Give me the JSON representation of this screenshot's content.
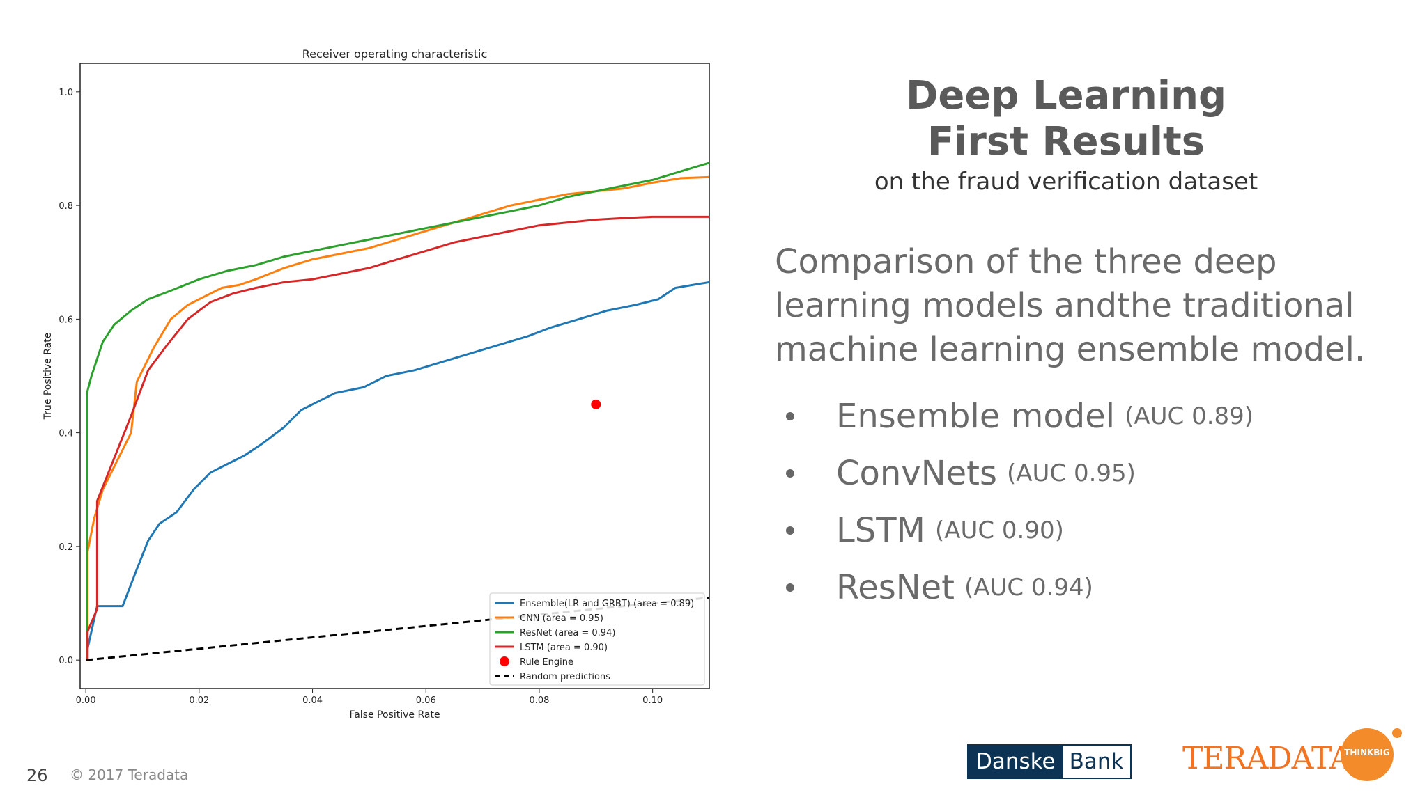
{
  "slide": {
    "title_line1": "Deep Learning",
    "title_line2": "First Results",
    "subtitle": "on the fraud verification dataset",
    "intro": "Comparison of the three deep learning models andthe traditional machine learning ensemble model.",
    "bullets": [
      {
        "model": "Ensemble model",
        "auc": "(AUC 0.89)"
      },
      {
        "model": "ConvNets",
        "auc": "(AUC 0.95)"
      },
      {
        "model": "LSTM",
        "auc": "(AUC 0.90)"
      },
      {
        "model": "ResNet",
        "auc": "(AUC 0.94)"
      }
    ],
    "page_number": "26",
    "copyright": "© 2017 Teradata",
    "logos": {
      "danske_1": "Danske",
      "danske_2": "Bank",
      "teradata": "TERADATA",
      "thinkbig": "THINKBIG"
    }
  },
  "chart_data": {
    "type": "line",
    "title": "Receiver operating characteristic",
    "xlabel": "False Positive Rate",
    "ylabel": "True Positive Rate",
    "xlim": [
      -0.001,
      0.11
    ],
    "ylim": [
      -0.05,
      1.05
    ],
    "xticks": [
      "0.00",
      "0.02",
      "0.04",
      "0.06",
      "0.08",
      "0.10"
    ],
    "yticks": [
      "0.0",
      "0.2",
      "0.4",
      "0.6",
      "0.8",
      "1.0"
    ],
    "legend_position": "lower-right",
    "series": [
      {
        "name": "Ensemble(LR and GRBT) (area = 0.89)",
        "color": "#1f77b4",
        "x": [
          0,
          0.0003,
          0.0003,
          0.002,
          0.0065,
          0.009,
          0.011,
          0.013,
          0.016,
          0.019,
          0.022,
          0.025,
          0.028,
          0.031,
          0.035,
          0.038,
          0.041,
          0.044,
          0.049,
          0.053,
          0.058,
          0.063,
          0.068,
          0.073,
          0.078,
          0.082,
          0.087,
          0.092,
          0.097,
          0.101,
          0.104,
          0.107,
          0.11
        ],
        "y": [
          0,
          0,
          0.02,
          0.095,
          0.095,
          0.16,
          0.21,
          0.24,
          0.26,
          0.3,
          0.33,
          0.345,
          0.36,
          0.38,
          0.41,
          0.44,
          0.455,
          0.47,
          0.48,
          0.5,
          0.51,
          0.525,
          0.54,
          0.555,
          0.57,
          0.585,
          0.6,
          0.615,
          0.625,
          0.635,
          0.655,
          0.66,
          0.665
        ]
      },
      {
        "name": "CNN (area = 0.95)",
        "color": "#ff7f0e",
        "x": [
          0,
          0.0003,
          0.0003,
          0.0015,
          0.003,
          0.005,
          0.008,
          0.009,
          0.012,
          0.015,
          0.018,
          0.021,
          0.024,
          0.027,
          0.03,
          0.035,
          0.04,
          0.045,
          0.05,
          0.055,
          0.06,
          0.065,
          0.07,
          0.075,
          0.08,
          0.085,
          0.09,
          0.095,
          0.1,
          0.105,
          0.11
        ],
        "y": [
          0,
          0,
          0.19,
          0.25,
          0.3,
          0.34,
          0.4,
          0.49,
          0.55,
          0.6,
          0.625,
          0.64,
          0.655,
          0.66,
          0.67,
          0.69,
          0.705,
          0.715,
          0.725,
          0.74,
          0.755,
          0.77,
          0.785,
          0.8,
          0.81,
          0.82,
          0.825,
          0.83,
          0.84,
          0.848,
          0.85
        ]
      },
      {
        "name": "ResNet (area = 0.94)",
        "color": "#2ca02c",
        "x": [
          0,
          0.0002,
          0.0002,
          0.001,
          0.002,
          0.003,
          0.005,
          0.008,
          0.011,
          0.015,
          0.02,
          0.025,
          0.03,
          0.035,
          0.04,
          0.045,
          0.05,
          0.055,
          0.06,
          0.065,
          0.07,
          0.075,
          0.08,
          0.085,
          0.09,
          0.095,
          0.1,
          0.105,
          0.11
        ],
        "y": [
          0,
          0,
          0.47,
          0.5,
          0.53,
          0.56,
          0.59,
          0.615,
          0.635,
          0.65,
          0.67,
          0.685,
          0.695,
          0.71,
          0.72,
          0.73,
          0.74,
          0.75,
          0.76,
          0.77,
          0.78,
          0.79,
          0.8,
          0.815,
          0.825,
          0.835,
          0.845,
          0.86,
          0.875
        ]
      },
      {
        "name": "LSTM (area = 0.90)",
        "color": "#d62728",
        "x": [
          0,
          0.0003,
          0.0003,
          0.002,
          0.002,
          0.004,
          0.006,
          0.008,
          0.011,
          0.014,
          0.018,
          0.022,
          0.026,
          0.03,
          0.035,
          0.04,
          0.045,
          0.05,
          0.055,
          0.06,
          0.065,
          0.07,
          0.075,
          0.08,
          0.085,
          0.09,
          0.095,
          0.1,
          0.11
        ],
        "y": [
          0,
          0,
          0.05,
          0.09,
          0.28,
          0.33,
          0.38,
          0.43,
          0.51,
          0.55,
          0.6,
          0.63,
          0.645,
          0.655,
          0.665,
          0.67,
          0.68,
          0.69,
          0.705,
          0.72,
          0.735,
          0.745,
          0.755,
          0.765,
          0.77,
          0.775,
          0.778,
          0.78,
          0.78
        ]
      },
      {
        "name": "Rule Engine",
        "color": "#ff0000",
        "x": [
          0.09
        ],
        "y": [
          0.45
        ],
        "marker": "circle"
      },
      {
        "name": "Random predictions",
        "color": "#000000",
        "x": [
          0,
          0.11
        ],
        "y": [
          0,
          0.11
        ],
        "style": "dashed"
      }
    ]
  }
}
